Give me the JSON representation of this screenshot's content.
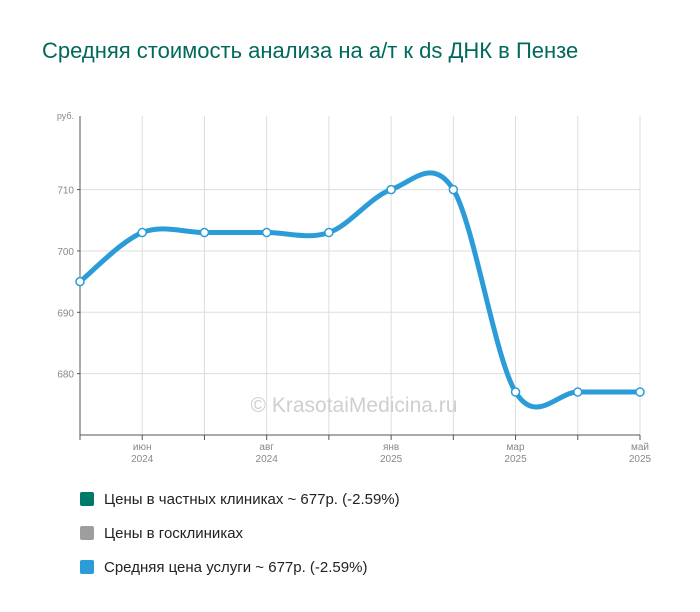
{
  "title": "Средняя стоимость анализа на а/т к ds ДНК в Пензе",
  "watermark": "© KrasotaiMedicina.ru",
  "chart_data": {
    "type": "line",
    "ylabel": "руб.",
    "ylim": [
      670,
      722
    ],
    "yticks": [
      680,
      690,
      700,
      710
    ],
    "x": [
      0,
      1,
      2,
      3,
      4,
      5,
      6,
      7,
      8,
      9
    ],
    "xticks": [
      {
        "index": 1,
        "month": "июн",
        "year": "2024"
      },
      {
        "index": 3,
        "month": "авг",
        "year": "2024"
      },
      {
        "index": 5,
        "month": "янв",
        "year": "2025"
      },
      {
        "index": 7,
        "month": "мар",
        "year": "2025"
      },
      {
        "index": 9,
        "month": "май",
        "year": "2025"
      }
    ],
    "grid": true,
    "series": [
      {
        "name": "Средняя цена услуги",
        "color": "#2b9cd8",
        "values": [
          695,
          703,
          703,
          703,
          703,
          710,
          710,
          677,
          677,
          677
        ]
      }
    ]
  },
  "legend": [
    {
      "label": "Цены в частных клиниках ~ 677р. (-2.59%)",
      "color": "#00796b"
    },
    {
      "label": "Цены в госклиниках",
      "color": "#9e9e9e"
    },
    {
      "label": "Средняя цена услуги ~ 677р. (-2.59%)",
      "color": "#2b9cd8"
    }
  ]
}
